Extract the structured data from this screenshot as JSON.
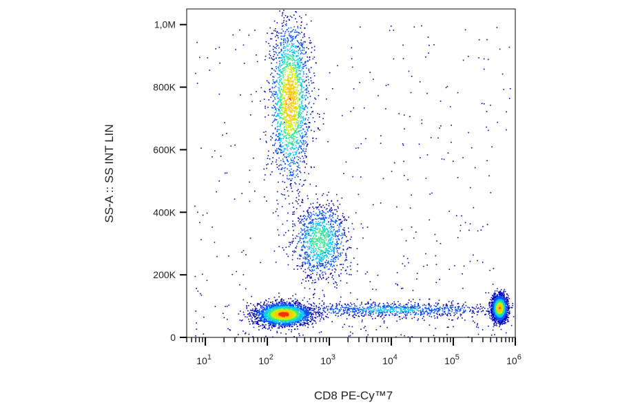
{
  "chart_data": {
    "type": "scatter",
    "subtype": "flow-cytometry-density-dot-plot",
    "xlabel": "CD8 PE-Cy™7",
    "ylabel": "SS-A :: SS INT LIN",
    "x_scale": "log",
    "xlim": [
      5,
      1000000
    ],
    "ylim": [
      0,
      1050000
    ],
    "y_ticks": [
      {
        "value": 0,
        "label": "0"
      },
      {
        "value": 200000,
        "label": "200K"
      },
      {
        "value": 400000,
        "label": "400K"
      },
      {
        "value": 600000,
        "label": "600K"
      },
      {
        "value": 800000,
        "label": "800K"
      },
      {
        "value": 1000000,
        "label": "1,0M"
      }
    ],
    "x_ticks": [
      {
        "value": 10,
        "base": "10",
        "exp": "1"
      },
      {
        "value": 100,
        "base": "10",
        "exp": "2"
      },
      {
        "value": 1000,
        "base": "10",
        "exp": "3"
      },
      {
        "value": 10000,
        "base": "10",
        "exp": "4"
      },
      {
        "value": 100000,
        "base": "10",
        "exp": "5"
      },
      {
        "value": 1000000,
        "base": "10",
        "exp": "6"
      }
    ],
    "populations": [
      {
        "x_center": 180,
        "y_center": 75000,
        "log_x_sd": 0.22,
        "y_sd": 18000,
        "density": "highest"
      },
      {
        "x_center": 550000,
        "y_center": 95000,
        "log_x_sd": 0.06,
        "y_sd": 20000,
        "density": "high"
      },
      {
        "x_center": 230,
        "y_center": 760000,
        "log_x_sd": 0.16,
        "y_sd": 130000,
        "density": "high"
      },
      {
        "x_center": 700,
        "y_center": 310000,
        "log_x_sd": 0.22,
        "y_sd": 60000,
        "density": "medium"
      },
      {
        "x_center": 10000,
        "y_center": 90000,
        "log_x_sd": 0.9,
        "y_sd": 12000,
        "density": "low"
      }
    ],
    "color_scale": [
      "#0000b4",
      "#0050ff",
      "#00c8ff",
      "#30e890",
      "#c8f000",
      "#ffc800",
      "#ff3000"
    ],
    "grid": false,
    "legend": "none"
  }
}
